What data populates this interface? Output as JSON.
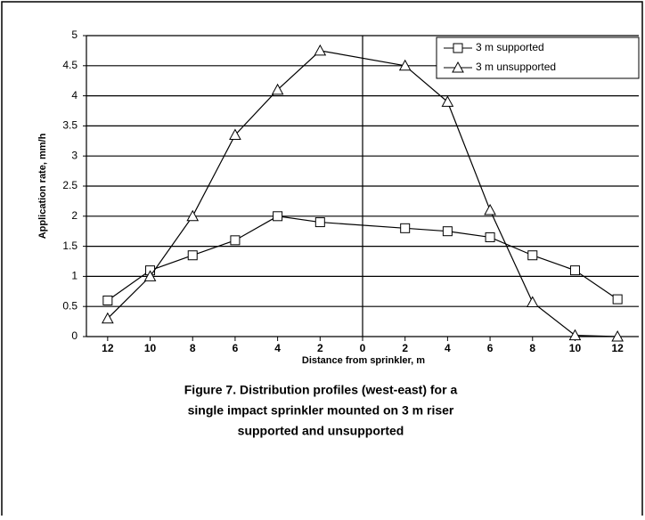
{
  "chart_data": {
    "type": "line",
    "x_label": "Distance from sprinkler, m",
    "y_label": "Application rate, mm/h",
    "caption": [
      "Figure 7. Distribution profiles (west-east) for a",
      "single impact sprinkler mounted on 3 m riser",
      "supported and unsupported"
    ],
    "x": [
      -12,
      -10,
      -8,
      -6,
      -4,
      -2,
      2,
      4,
      6,
      8,
      10,
      12
    ],
    "series": [
      {
        "name": "3 m supported",
        "color": "#000000",
        "marker": "square",
        "values": [
          0.6,
          1.1,
          1.35,
          1.6,
          2.0,
          1.9,
          1.8,
          1.75,
          1.65,
          1.35,
          1.1,
          0.62
        ]
      },
      {
        "name": "3 m unsupported",
        "color": "#000000",
        "marker": "triangle",
        "values": [
          0.3,
          1.0,
          2.0,
          3.35,
          4.1,
          4.75,
          4.5,
          3.9,
          2.1,
          0.57,
          0.02,
          0
        ]
      }
    ],
    "xlim": [
      -13,
      13
    ],
    "xticks": [
      {
        "value": -12,
        "label": "12"
      },
      {
        "value": -10,
        "label": "10"
      },
      {
        "value": -8,
        "label": "8"
      },
      {
        "value": -6,
        "label": "6"
      },
      {
        "value": -4,
        "label": "4"
      },
      {
        "value": -2,
        "label": "2"
      },
      0,
      2,
      4,
      6,
      8,
      10,
      12
    ],
    "ylim": [
      0,
      5
    ],
    "yticks": [
      0,
      0.5,
      1,
      1.5,
      2,
      2.5,
      3,
      3.5,
      4,
      4.5,
      5
    ],
    "grid": true,
    "legend": "top-right"
  }
}
